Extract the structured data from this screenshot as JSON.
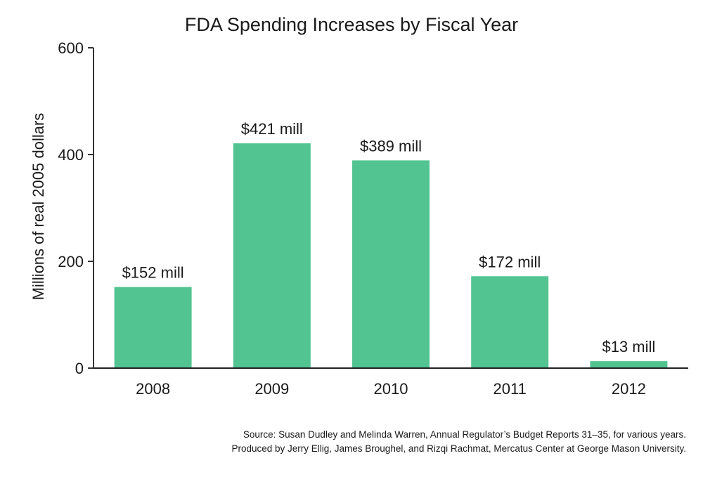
{
  "chart_data": {
    "type": "bar",
    "title": "FDA Spending Increases by Fiscal Year",
    "xlabel": "",
    "ylabel": "Millions of real 2005 dollars",
    "categories": [
      "2008",
      "2009",
      "2010",
      "2011",
      "2012"
    ],
    "values": [
      152,
      421,
      389,
      172,
      13
    ],
    "data_labels": [
      "$152 mill",
      "$421 mill",
      "$389 mill",
      "$172 mill",
      "$13 mill"
    ],
    "ylim": [
      0,
      600
    ],
    "yticks": [
      0,
      200,
      400,
      600
    ],
    "ytick_labels": [
      "0",
      "200",
      "400",
      "600"
    ],
    "grid": false,
    "bar_color": "#52c491"
  },
  "source": {
    "line1": "Source: Susan Dudley and Melinda Warren, Annual Regulator’s Budget Reports 31–35, for various years.",
    "line2": "Produced by Jerry Ellig, James Broughel, and Rizqi Rachmat, Mercatus Center at George Mason University."
  }
}
